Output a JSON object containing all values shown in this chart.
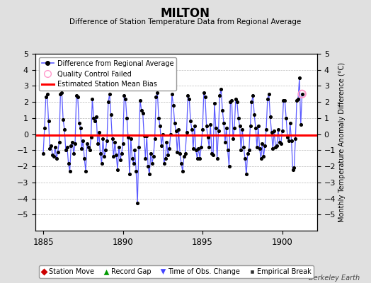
{
  "title": "MILTON",
  "subtitle": "Difference of Station Temperature Data from Regional Average",
  "ylabel_right": "Monthly Temperature Anomaly Difference (°C)",
  "xlim": [
    1884.5,
    1902.2
  ],
  "ylim": [
    -6,
    5
  ],
  "yticks": [
    -5,
    -4,
    -3,
    -2,
    -1,
    0,
    1,
    2,
    3,
    4,
    5
  ],
  "xticks": [
    1885,
    1890,
    1895,
    1900
  ],
  "bias_value": -0.05,
  "line_color": "#5b5bff",
  "dot_color": "#000000",
  "bias_color": "#ff0000",
  "bg_color": "#e0e0e0",
  "plot_bg": "#ffffff",
  "footer_text": "Berkeley Earth",
  "legend1_items": [
    {
      "label": "Difference from Regional Average",
      "color": "#5b5bff",
      "type": "line_dot"
    },
    {
      "label": "Quality Control Failed",
      "color": "#ff88cc",
      "type": "circle"
    },
    {
      "label": "Estimated Station Mean Bias",
      "color": "#ff0000",
      "type": "line"
    }
  ],
  "legend2_items": [
    {
      "label": "Station Move",
      "color": "#cc0000",
      "marker": "D"
    },
    {
      "label": "Record Gap",
      "color": "#009900",
      "marker": "^"
    },
    {
      "label": "Time of Obs. Change",
      "color": "#4444ff",
      "marker": "v"
    },
    {
      "label": "Empirical Break",
      "color": "#333333",
      "marker": "s"
    }
  ],
  "qc_failed_x": [
    1901.25
  ],
  "qc_failed_y": [
    2.5
  ],
  "data_x": [
    1885.0,
    1885.083,
    1885.167,
    1885.25,
    1885.333,
    1885.417,
    1885.5,
    1885.583,
    1885.667,
    1885.75,
    1885.833,
    1885.917,
    1886.0,
    1886.083,
    1886.167,
    1886.25,
    1886.333,
    1886.417,
    1886.5,
    1886.583,
    1886.667,
    1886.75,
    1886.833,
    1886.917,
    1887.0,
    1887.083,
    1887.167,
    1887.25,
    1887.333,
    1887.417,
    1887.5,
    1887.583,
    1887.667,
    1887.75,
    1887.833,
    1887.917,
    1888.0,
    1888.083,
    1888.167,
    1888.25,
    1888.333,
    1888.417,
    1888.5,
    1888.583,
    1888.667,
    1888.75,
    1888.833,
    1888.917,
    1889.0,
    1889.083,
    1889.167,
    1889.25,
    1889.333,
    1889.417,
    1889.5,
    1889.583,
    1889.667,
    1889.75,
    1889.833,
    1889.917,
    1890.0,
    1890.083,
    1890.167,
    1890.25,
    1890.333,
    1890.417,
    1890.5,
    1890.583,
    1890.667,
    1890.75,
    1890.833,
    1890.917,
    1891.0,
    1891.083,
    1891.167,
    1891.25,
    1891.333,
    1891.417,
    1891.5,
    1891.583,
    1891.667,
    1891.75,
    1891.833,
    1891.917,
    1892.0,
    1892.083,
    1892.167,
    1892.25,
    1892.333,
    1892.417,
    1892.5,
    1892.583,
    1892.667,
    1892.75,
    1892.833,
    1892.917,
    1893.0,
    1893.083,
    1893.167,
    1893.25,
    1893.333,
    1893.417,
    1893.5,
    1893.583,
    1893.667,
    1893.75,
    1893.833,
    1893.917,
    1894.0,
    1894.083,
    1894.167,
    1894.25,
    1894.333,
    1894.417,
    1894.5,
    1894.583,
    1894.667,
    1894.75,
    1894.833,
    1894.917,
    1895.0,
    1895.083,
    1895.167,
    1895.25,
    1895.333,
    1895.417,
    1895.5,
    1895.583,
    1895.667,
    1895.75,
    1895.833,
    1895.917,
    1896.0,
    1896.083,
    1896.167,
    1896.25,
    1896.333,
    1896.417,
    1896.5,
    1896.583,
    1896.667,
    1896.75,
    1896.833,
    1896.917,
    1897.0,
    1897.083,
    1897.167,
    1897.25,
    1897.333,
    1897.417,
    1897.5,
    1897.583,
    1897.667,
    1897.75,
    1897.833,
    1897.917,
    1898.0,
    1898.083,
    1898.167,
    1898.25,
    1898.333,
    1898.417,
    1898.5,
    1898.583,
    1898.667,
    1898.75,
    1898.833,
    1898.917,
    1899.0,
    1899.083,
    1899.167,
    1899.25,
    1899.333,
    1899.417,
    1899.5,
    1899.583,
    1899.667,
    1899.75,
    1899.833,
    1899.917,
    1900.0,
    1900.083,
    1900.167,
    1900.25,
    1900.333,
    1900.417,
    1900.5,
    1900.583,
    1900.667,
    1900.75,
    1900.833,
    1900.917,
    1901.0,
    1901.083,
    1901.167,
    1901.25
  ],
  "data_y": [
    -1.2,
    0.4,
    2.3,
    2.5,
    0.8,
    -0.9,
    -0.7,
    -1.3,
    -1.4,
    -0.8,
    -1.5,
    -1.1,
    -0.5,
    2.5,
    2.6,
    0.9,
    0.3,
    -1.0,
    -0.8,
    -1.8,
    -2.3,
    -0.7,
    -0.5,
    -1.2,
    -0.6,
    2.4,
    2.3,
    0.7,
    0.4,
    -0.9,
    -0.4,
    -1.5,
    -2.3,
    -0.6,
    -0.8,
    -1.0,
    -0.2,
    2.2,
    1.0,
    0.8,
    1.1,
    -0.6,
    0.1,
    -1.2,
    -1.8,
    -0.3,
    -1.4,
    -1.0,
    -0.4,
    2.0,
    2.5,
    1.2,
    -0.3,
    -1.4,
    -0.5,
    -1.3,
    -2.2,
    -0.8,
    -1.6,
    -1.2,
    -0.6,
    2.4,
    2.2,
    1.0,
    -0.2,
    -2.5,
    -0.3,
    -1.5,
    -1.8,
    -1.0,
    -2.3,
    -4.3,
    -0.8,
    2.1,
    1.5,
    1.3,
    -0.1,
    -1.5,
    -0.1,
    -2.0,
    -2.5,
    -1.2,
    -1.8,
    -1.4,
    -0.3,
    2.3,
    2.6,
    1.0,
    0.5,
    -0.7,
    0.0,
    -1.8,
    -1.5,
    -0.5,
    -1.3,
    -0.9,
    0.0,
    2.5,
    1.8,
    0.7,
    0.2,
    -1.1,
    0.3,
    -1.2,
    -1.8,
    -2.3,
    -1.4,
    -1.2,
    0.1,
    2.4,
    2.2,
    0.8,
    0.3,
    -0.9,
    0.5,
    -1.0,
    -1.5,
    -0.9,
    -1.5,
    -0.8,
    0.3,
    2.6,
    2.3,
    0.5,
    -0.2,
    -0.8,
    0.6,
    -1.2,
    -1.3,
    1.9,
    0.4,
    -1.5,
    0.2,
    2.4,
    2.8,
    1.5,
    0.7,
    -0.5,
    0.4,
    -1.0,
    -2.0,
    2.0,
    2.1,
    -0.3,
    0.4,
    2.2,
    2.0,
    1.0,
    0.5,
    -1.0,
    0.3,
    -0.8,
    -1.5,
    -2.5,
    -1.2,
    -1.0,
    0.5,
    2.0,
    2.4,
    1.2,
    0.4,
    -0.8,
    0.5,
    -0.9,
    -1.5,
    -0.6,
    -1.4,
    -0.7,
    0.3,
    2.2,
    2.5,
    1.1,
    0.1,
    -0.9,
    0.2,
    -0.8,
    -0.7,
    0.3,
    -0.5,
    -0.6,
    0.2,
    2.1,
    2.1,
    1.0,
    -0.2,
    -0.4,
    0.7,
    -0.4,
    -2.2,
    -2.1,
    -0.3,
    2.1,
    2.2,
    3.5,
    0.6,
    2.5
  ]
}
